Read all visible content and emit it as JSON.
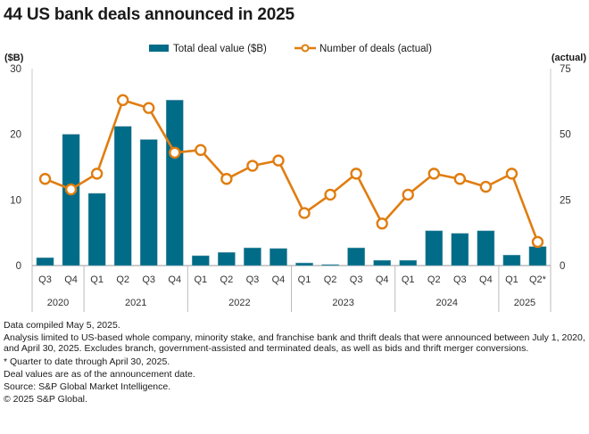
{
  "title": "44 US bank deals announced in 2025",
  "chart_data": {
    "type": "bar",
    "title": "44 US bank deals announced in 2025",
    "categories": [
      "Q3 2020",
      "Q4 2020",
      "Q1 2021",
      "Q2 2021",
      "Q3 2021",
      "Q4 2021",
      "Q1 2022",
      "Q2 2022",
      "Q3 2022",
      "Q4 2022",
      "Q1 2023",
      "Q2 2023",
      "Q3 2023",
      "Q4 2023",
      "Q1 2024",
      "Q2 2024",
      "Q3 2024",
      "Q4 2024",
      "Q1 2025",
      "Q2* 2025"
    ],
    "quarter_labels": [
      "Q3",
      "Q4",
      "Q1",
      "Q2",
      "Q3",
      "Q4",
      "Q1",
      "Q2",
      "Q3",
      "Q4",
      "Q1",
      "Q2",
      "Q3",
      "Q4",
      "Q1",
      "Q2",
      "Q3",
      "Q4",
      "Q1",
      "Q2*"
    ],
    "year_groups": [
      {
        "label": "2020",
        "count": 2
      },
      {
        "label": "2021",
        "count": 4
      },
      {
        "label": "2022",
        "count": 4
      },
      {
        "label": "2023",
        "count": 4
      },
      {
        "label": "2024",
        "count": 4
      },
      {
        "label": "2025",
        "count": 2
      }
    ],
    "series": [
      {
        "name": "Total deal value ($B)",
        "type": "bar",
        "axis": "left",
        "color": "#006C87",
        "values": [
          1.2,
          20.0,
          11.0,
          21.2,
          19.2,
          25.2,
          1.5,
          2.0,
          2.7,
          2.6,
          0.4,
          0.15,
          2.7,
          0.8,
          0.8,
          5.3,
          4.9,
          5.3,
          1.6,
          2.9
        ]
      },
      {
        "name": "Number of deals (actual)",
        "type": "line",
        "axis": "right",
        "color": "#E07D10",
        "values": [
          33,
          29,
          35,
          63,
          60,
          43,
          44,
          33,
          38,
          40,
          20,
          27,
          35,
          16,
          27,
          35,
          33,
          30,
          35,
          9
        ]
      }
    ],
    "left_axis": {
      "label": "($B)",
      "ylim": [
        0,
        30
      ],
      "ticks": [
        0,
        10,
        20,
        30
      ]
    },
    "right_axis": {
      "label": "(actual)",
      "ylim": [
        0,
        75
      ],
      "ticks": [
        0,
        25,
        50,
        75
      ]
    },
    "legend_position": "top-center",
    "grid": false
  },
  "notes": [
    "Data compiled May 5, 2025.",
    "Analysis limited to US-based whole company, minority stake, and franchise bank and thrift deals that were announced between July 1, 2020, and April 30, 2025. Excludes branch, government-assisted and terminated deals, as well as bids and thrift merger conversions.",
    "* Quarter to date through April 30, 2025.",
    "Deal values are as of the announcement date.",
    "Source: S&P Global Market Intelligence.",
    "© 2025 S&P Global."
  ]
}
